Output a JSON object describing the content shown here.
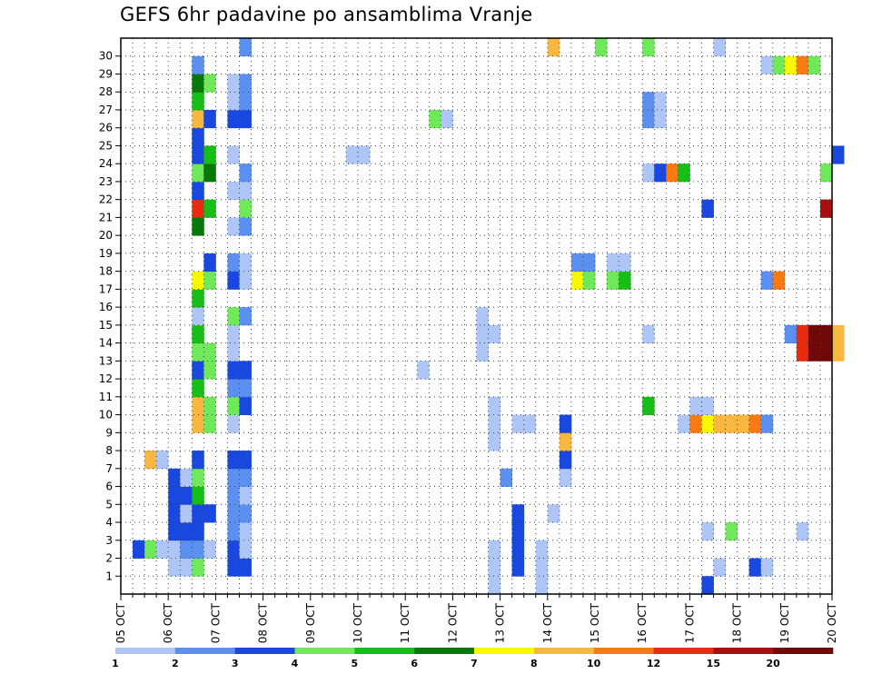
{
  "chart_data": {
    "type": "heatmap",
    "title": "GEFS 6hr padavine po ansamblima Vranje",
    "x_ticks": [
      "05 OCT",
      "06 OCT",
      "07 OCT",
      "08 OCT",
      "09 OCT",
      "10 OCT",
      "11 OCT",
      "12 OCT",
      "13 OCT",
      "14 OCT",
      "15 OCT",
      "16 OCT",
      "17 OCT",
      "18 OCT",
      "19 OCT",
      "20 OCT"
    ],
    "y_ticks": [
      "1",
      "2",
      "3",
      "4",
      "5",
      "6",
      "7",
      "8",
      "9",
      "10",
      "11",
      "12",
      "13",
      "14",
      "15",
      "16",
      "17",
      "18",
      "19",
      "20",
      "21",
      "22",
      "23",
      "24",
      "25",
      "26",
      "27",
      "28",
      "29",
      "30"
    ],
    "steps_per_day": 4,
    "grid": true,
    "legend_placement": "bottom",
    "legend": {
      "labels": [
        "1",
        "2",
        "3",
        "4",
        "5",
        "6",
        "7",
        "8",
        "10",
        "12",
        "15",
        "20"
      ],
      "colors": [
        "#aec6f5",
        "#5b8ff0",
        "#1848e0",
        "#6fe85a",
        "#16bf16",
        "#087808",
        "#f8f800",
        "#f8b840",
        "#f87a10",
        "#e82c10",
        "#a81010",
        "#700808"
      ]
    },
    "cells": [
      [
        0,
        1,
        2,
        "#1848e0"
      ],
      [
        0,
        2,
        2,
        "#6fe85a"
      ],
      [
        0,
        2,
        7,
        "#f8b840"
      ],
      [
        0,
        3,
        2,
        "#aec6f5"
      ],
      [
        0,
        3,
        7,
        "#aec6f5"
      ],
      [
        1,
        0,
        1,
        "#aec6f5"
      ],
      [
        1,
        0,
        2,
        "#aec6f5"
      ],
      [
        1,
        0,
        3,
        "#1848e0"
      ],
      [
        1,
        0,
        4,
        "#1848e0"
      ],
      [
        1,
        0,
        5,
        "#1848e0"
      ],
      [
        1,
        0,
        6,
        "#1848e0"
      ],
      [
        1,
        1,
        1,
        "#aec6f5"
      ],
      [
        1,
        1,
        2,
        "#5b8ff0"
      ],
      [
        1,
        1,
        3,
        "#1848e0"
      ],
      [
        1,
        1,
        4,
        "#aec6f5"
      ],
      [
        1,
        1,
        5,
        "#1848e0"
      ],
      [
        1,
        1,
        6,
        "#aec6f5"
      ],
      [
        1,
        2,
        1,
        "#6fe85a"
      ],
      [
        1,
        2,
        2,
        "#5b8ff0"
      ],
      [
        1,
        2,
        3,
        "#1848e0"
      ],
      [
        1,
        2,
        4,
        "#1848e0"
      ],
      [
        1,
        2,
        5,
        "#16bf16"
      ],
      [
        1,
        2,
        6,
        "#6fe85a"
      ],
      [
        1,
        2,
        7,
        "#1848e0"
      ],
      [
        1,
        2,
        9,
        "#f8b840"
      ],
      [
        1,
        2,
        10,
        "#f8b840"
      ],
      [
        1,
        2,
        11,
        "#16bf16"
      ],
      [
        1,
        2,
        12,
        "#1848e0"
      ],
      [
        1,
        2,
        13,
        "#6fe85a"
      ],
      [
        1,
        2,
        14,
        "#16bf16"
      ],
      [
        1,
        2,
        15,
        "#aec6f5"
      ],
      [
        1,
        2,
        16,
        "#16bf16"
      ],
      [
        1,
        2,
        17,
        "#f8f800"
      ],
      [
        1,
        2,
        20,
        "#087808"
      ],
      [
        1,
        2,
        21,
        "#e82c10"
      ],
      [
        1,
        2,
        22,
        "#1848e0"
      ],
      [
        1,
        2,
        23,
        "#6fe85a"
      ],
      [
        1,
        2,
        24,
        "#1848e0"
      ],
      [
        1,
        2,
        25,
        "#1848e0"
      ],
      [
        1,
        2,
        26,
        "#f8b840"
      ],
      [
        1,
        2,
        27,
        "#16bf16"
      ],
      [
        1,
        2,
        28,
        "#087808"
      ],
      [
        1,
        2,
        29,
        "#5b8ff0"
      ],
      [
        1,
        3,
        2,
        "#aec6f5"
      ],
      [
        1,
        3,
        4,
        "#1848e0"
      ],
      [
        1,
        3,
        9,
        "#6fe85a"
      ],
      [
        1,
        3,
        10,
        "#6fe85a"
      ],
      [
        1,
        3,
        12,
        "#6fe85a"
      ],
      [
        1,
        3,
        13,
        "#6fe85a"
      ],
      [
        1,
        3,
        17,
        "#6fe85a"
      ],
      [
        1,
        3,
        18,
        "#1848e0"
      ],
      [
        1,
        3,
        21,
        "#16bf16"
      ],
      [
        1,
        3,
        23,
        "#087808"
      ],
      [
        1,
        3,
        24,
        "#16bf16"
      ],
      [
        1,
        3,
        26,
        "#1848e0"
      ],
      [
        1,
        3,
        28,
        "#6fe85a"
      ],
      [
        2,
        1,
        1,
        "#1848e0"
      ],
      [
        2,
        1,
        2,
        "#1848e0"
      ],
      [
        2,
        1,
        3,
        "#5b8ff0"
      ],
      [
        2,
        1,
        4,
        "#5b8ff0"
      ],
      [
        2,
        1,
        5,
        "#5b8ff0"
      ],
      [
        2,
        1,
        6,
        "#5b8ff0"
      ],
      [
        2,
        1,
        7,
        "#1848e0"
      ],
      [
        2,
        1,
        9,
        "#aec6f5"
      ],
      [
        2,
        1,
        10,
        "#6fe85a"
      ],
      [
        2,
        1,
        11,
        "#5b8ff0"
      ],
      [
        2,
        1,
        12,
        "#1848e0"
      ],
      [
        2,
        1,
        13,
        "#aec6f5"
      ],
      [
        2,
        1,
        14,
        "#aec6f5"
      ],
      [
        2,
        1,
        15,
        "#6fe85a"
      ],
      [
        2,
        1,
        17,
        "#1848e0"
      ],
      [
        2,
        1,
        18,
        "#5b8ff0"
      ],
      [
        2,
        1,
        20,
        "#aec6f5"
      ],
      [
        2,
        1,
        22,
        "#aec6f5"
      ],
      [
        2,
        1,
        24,
        "#aec6f5"
      ],
      [
        2,
        1,
        26,
        "#1848e0"
      ],
      [
        2,
        1,
        27,
        "#aec6f5"
      ],
      [
        2,
        1,
        28,
        "#aec6f5"
      ],
      [
        2,
        2,
        1,
        "#1848e0"
      ],
      [
        2,
        2,
        2,
        "#aec6f5"
      ],
      [
        2,
        2,
        3,
        "#aec6f5"
      ],
      [
        2,
        2,
        4,
        "#5b8ff0"
      ],
      [
        2,
        2,
        5,
        "#aec6f5"
      ],
      [
        2,
        2,
        6,
        "#5b8ff0"
      ],
      [
        2,
        2,
        7,
        "#1848e0"
      ],
      [
        2,
        2,
        10,
        "#1848e0"
      ],
      [
        2,
        2,
        11,
        "#5b8ff0"
      ],
      [
        2,
        2,
        12,
        "#1848e0"
      ],
      [
        2,
        2,
        15,
        "#5b8ff0"
      ],
      [
        2,
        2,
        17,
        "#aec6f5"
      ],
      [
        2,
        2,
        18,
        "#aec6f5"
      ],
      [
        2,
        2,
        20,
        "#5b8ff0"
      ],
      [
        2,
        2,
        21,
        "#6fe85a"
      ],
      [
        2,
        2,
        22,
        "#aec6f5"
      ],
      [
        2,
        2,
        23,
        "#5b8ff0"
      ],
      [
        2,
        2,
        26,
        "#1848e0"
      ],
      [
        2,
        2,
        27,
        "#5b8ff0"
      ],
      [
        2,
        2,
        28,
        "#5b8ff0"
      ],
      [
        2,
        2,
        30,
        "#5b8ff0"
      ],
      [
        4,
        3,
        24,
        "#aec6f5"
      ],
      [
        5,
        0,
        24,
        "#aec6f5"
      ],
      [
        6,
        1,
        12,
        "#aec6f5"
      ],
      [
        6,
        2,
        26,
        "#6fe85a"
      ],
      [
        6,
        3,
        26,
        "#aec6f5"
      ],
      [
        7,
        2,
        13,
        "#aec6f5"
      ],
      [
        7,
        2,
        14,
        "#aec6f5"
      ],
      [
        7,
        2,
        15,
        "#aec6f5"
      ],
      [
        7,
        3,
        0,
        "#aec6f5"
      ],
      [
        7,
        3,
        1,
        "#aec6f5"
      ],
      [
        7,
        3,
        2,
        "#aec6f5"
      ],
      [
        7,
        3,
        8,
        "#aec6f5"
      ],
      [
        7,
        3,
        9,
        "#aec6f5"
      ],
      [
        7,
        3,
        10,
        "#aec6f5"
      ],
      [
        7,
        3,
        14,
        "#aec6f5"
      ],
      [
        8,
        0,
        6,
        "#5b8ff0"
      ],
      [
        8,
        1,
        1,
        "#1848e0"
      ],
      [
        8,
        1,
        2,
        "#1848e0"
      ],
      [
        8,
        1,
        3,
        "#1848e0"
      ],
      [
        8,
        1,
        4,
        "#1848e0"
      ],
      [
        8,
        1,
        9,
        "#aec6f5"
      ],
      [
        8,
        2,
        9,
        "#aec6f5"
      ],
      [
        8,
        3,
        0,
        "#aec6f5"
      ],
      [
        8,
        3,
        1,
        "#aec6f5"
      ],
      [
        8,
        3,
        2,
        "#aec6f5"
      ],
      [
        9,
        0,
        4,
        "#aec6f5"
      ],
      [
        9,
        0,
        30,
        "#f8b840"
      ],
      [
        9,
        1,
        6,
        "#aec6f5"
      ],
      [
        9,
        1,
        7,
        "#1848e0"
      ],
      [
        9,
        1,
        8,
        "#f8b840"
      ],
      [
        9,
        1,
        9,
        "#1848e0"
      ],
      [
        9,
        2,
        17,
        "#f8f800"
      ],
      [
        9,
        2,
        18,
        "#5b8ff0"
      ],
      [
        9,
        3,
        17,
        "#6fe85a"
      ],
      [
        9,
        3,
        18,
        "#5b8ff0"
      ],
      [
        10,
        0,
        30,
        "#6fe85a"
      ],
      [
        10,
        1,
        17,
        "#6fe85a"
      ],
      [
        10,
        1,
        18,
        "#aec6f5"
      ],
      [
        10,
        2,
        17,
        "#16bf16"
      ],
      [
        10,
        2,
        18,
        "#aec6f5"
      ],
      [
        11,
        0,
        10,
        "#16bf16"
      ],
      [
        11,
        0,
        14,
        "#aec6f5"
      ],
      [
        11,
        0,
        23,
        "#aec6f5"
      ],
      [
        11,
        0,
        26,
        "#5b8ff0"
      ],
      [
        11,
        0,
        27,
        "#5b8ff0"
      ],
      [
        11,
        0,
        30,
        "#6fe85a"
      ],
      [
        11,
        1,
        23,
        "#1848e0"
      ],
      [
        11,
        1,
        26,
        "#aec6f5"
      ],
      [
        11,
        1,
        27,
        "#aec6f5"
      ],
      [
        11,
        2,
        23,
        "#f87a10"
      ],
      [
        11,
        3,
        9,
        "#aec6f5"
      ],
      [
        11,
        3,
        23,
        "#16bf16"
      ],
      [
        12,
        0,
        9,
        "#f87a10"
      ],
      [
        12,
        0,
        10,
        "#aec6f5"
      ],
      [
        12,
        1,
        0,
        "#1848e0"
      ],
      [
        12,
        1,
        9,
        "#f8f800"
      ],
      [
        12,
        1,
        10,
        "#aec6f5"
      ],
      [
        12,
        1,
        3,
        "#aec6f5"
      ],
      [
        12,
        1,
        21,
        "#1848e0"
      ],
      [
        12,
        2,
        1,
        "#aec6f5"
      ],
      [
        12,
        2,
        9,
        "#f8b840"
      ],
      [
        12,
        2,
        30,
        "#aec6f5"
      ],
      [
        12,
        3,
        3,
        "#6fe85a"
      ],
      [
        12,
        3,
        9,
        "#f8b840"
      ],
      [
        13,
        0,
        9,
        "#f8b840"
      ],
      [
        13,
        1,
        1,
        "#1848e0"
      ],
      [
        13,
        1,
        9,
        "#f87a10"
      ],
      [
        13,
        2,
        1,
        "#aec6f5"
      ],
      [
        13,
        2,
        9,
        "#5b8ff0"
      ],
      [
        13,
        2,
        17,
        "#5b8ff0"
      ],
      [
        13,
        2,
        29,
        "#aec6f5"
      ],
      [
        13,
        3,
        17,
        "#f87a10"
      ],
      [
        13,
        3,
        29,
        "#6fe85a"
      ],
      [
        14,
        0,
        14,
        "#5b8ff0"
      ],
      [
        14,
        0,
        29,
        "#f8f800"
      ],
      [
        14,
        1,
        3,
        "#aec6f5"
      ],
      [
        14,
        1,
        13,
        "#e82c10"
      ],
      [
        14,
        1,
        14,
        "#e82c10"
      ],
      [
        14,
        1,
        29,
        "#f87a10"
      ],
      [
        14,
        2,
        13,
        "#700808"
      ],
      [
        14,
        2,
        14,
        "#700808"
      ],
      [
        14,
        2,
        29,
        "#6fe85a"
      ],
      [
        14,
        3,
        13,
        "#700808"
      ],
      [
        14,
        3,
        14,
        "#700808"
      ],
      [
        14,
        3,
        21,
        "#a81010"
      ],
      [
        14,
        3,
        23,
        "#6fe85a"
      ],
      [
        15,
        0,
        13,
        "#f8b840"
      ],
      [
        15,
        0,
        14,
        "#f8b840"
      ],
      [
        15,
        0,
        24,
        "#1848e0"
      ]
    ]
  }
}
